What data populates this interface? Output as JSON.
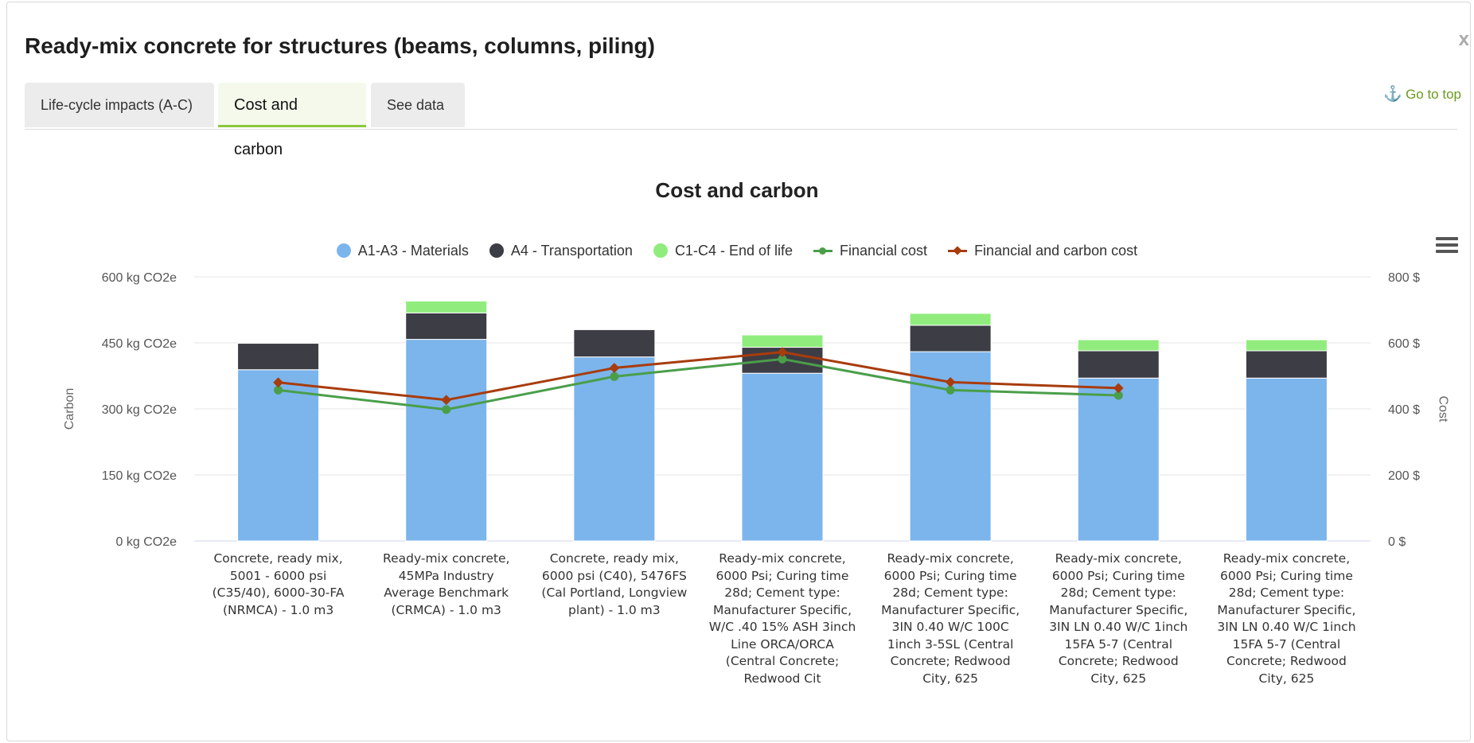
{
  "modal": {
    "title": "Ready-mix concrete for structures (beams, columns, piling)",
    "close_label": "x",
    "tabs": [
      {
        "label": "Life-cycle impacts (A-C)",
        "active": false
      },
      {
        "label": "Cost and carbon",
        "active": true
      },
      {
        "label": "See data",
        "active": false
      }
    ],
    "go_to_top_label": "Go to top"
  },
  "colors": {
    "materials": "#7cb5ec",
    "transportation": "#3d3d45",
    "end_of_life": "#90ed7d",
    "financial_cost": "#4a9e4a",
    "financial_carbon_cost": "#a83c0c",
    "accent": "#8dc63f"
  },
  "chart_data": {
    "type": "bar",
    "stacked": true,
    "title": "Cost and carbon",
    "ylabel": "Carbon",
    "ylabel_right": "Cost",
    "ylim": [
      0,
      600
    ],
    "ylim_right": [
      0,
      800
    ],
    "yticks": [
      "0 kg CO2e",
      "150 kg CO2e",
      "300 kg CO2e",
      "450 kg CO2e",
      "600 kg CO2e"
    ],
    "yticks_right": [
      "0 $",
      "200 $",
      "400 $",
      "600 $",
      "800 $"
    ],
    "legend_position": "top",
    "grid": true,
    "categories": [
      [
        "Concrete, ready mix,",
        "5001 - 6000 psi",
        "(C35/40), 6000-30-FA",
        "(NRMCA) - 1.0 m3"
      ],
      [
        "Ready-mix concrete,",
        "45MPa Industry",
        "Average Benchmark",
        "(CRMCA) - 1.0 m3"
      ],
      [
        "Concrete, ready mix,",
        "6000 psi (C40), 5476FS",
        "(Cal Portland, Longview",
        "plant) - 1.0 m3"
      ],
      [
        "Ready-mix concrete,",
        "6000 Psi; Curing time",
        "28d; Cement type:",
        "Manufacturer Specific,",
        "W/C .40 15% ASH 3inch",
        "Line ORCA/ORCA",
        "(Central Concrete;",
        "Redwood Cit"
      ],
      [
        "Ready-mix concrete,",
        "6000 Psi; Curing time",
        "28d; Cement type:",
        "Manufacturer Specific,",
        "3IN 0.40 W/C 100C",
        "1inch 3-5SL (Central",
        "Concrete; Redwood",
        "City, 625"
      ],
      [
        "Ready-mix concrete,",
        "6000 Psi; Curing time",
        "28d; Cement type:",
        "Manufacturer Specific,",
        "3IN LN 0.40 W/C 1inch",
        "15FA 5-7 (Central",
        "Concrete; Redwood",
        "City, 625"
      ],
      [
        "Ready-mix concrete,",
        "6000 Psi; Curing time",
        "28d; Cement type:",
        "Manufacturer Specific,",
        "3IN LN 0.40 W/C 1inch",
        "15FA 5-7 (Central",
        "Concrete; Redwood",
        "City, 625"
      ]
    ],
    "series": [
      {
        "name": "A1-A3 - Materials",
        "type": "bar",
        "axis": "left",
        "color": "#7cb5ec",
        "values": [
          389,
          458,
          418,
          381,
          430,
          370,
          370
        ]
      },
      {
        "name": "A4 - Transportation",
        "type": "bar",
        "axis": "left",
        "color": "#3d3d45",
        "values": [
          60,
          60,
          62,
          59,
          60,
          62,
          62
        ]
      },
      {
        "name": "C1-C4 - End of life",
        "type": "bar",
        "axis": "left",
        "color": "#90ed7d",
        "values": [
          0,
          27,
          0,
          28,
          27,
          25,
          25
        ]
      },
      {
        "name": "Financial cost",
        "type": "line",
        "axis": "right",
        "color": "#4a9e4a",
        "marker": "circle",
        "values": [
          457,
          398,
          498,
          551,
          457,
          441,
          null
        ]
      },
      {
        "name": "Financial and carbon cost",
        "type": "line",
        "axis": "right",
        "color": "#a83c0c",
        "marker": "diamond",
        "values": [
          480,
          427,
          524,
          572,
          481,
          463,
          null
        ]
      }
    ]
  }
}
